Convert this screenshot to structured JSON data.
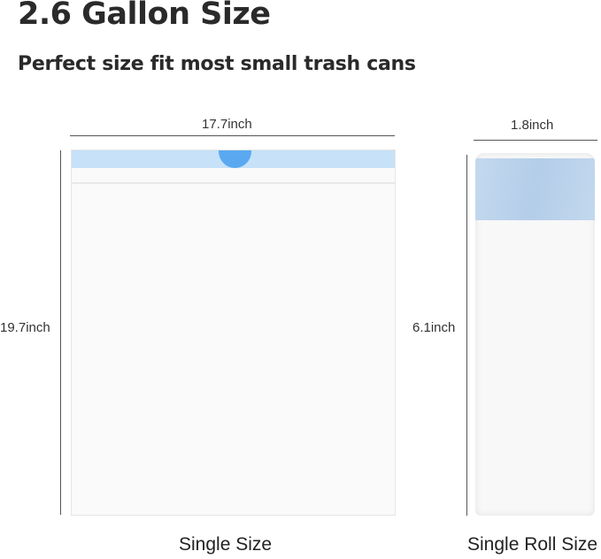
{
  "title": "2.6 Gallon Size",
  "subtitle": "Perfect size fit most small trash cans",
  "bag": {
    "width_label": "17.7inch",
    "height_label": "19.7inch",
    "caption": "Single Size"
  },
  "roll": {
    "width_label": "1.8inch",
    "height_label": "6.1inch",
    "caption": "Single Roll Size"
  },
  "colors": {
    "drawstring": "#c6e1f8",
    "tab": "#5aa9f0",
    "roll_band": "#b9d3ec"
  }
}
